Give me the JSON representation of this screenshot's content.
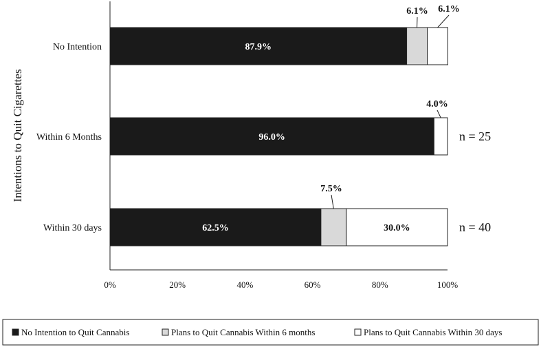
{
  "chart_data": {
    "type": "bar",
    "orientation": "horizontal",
    "stacked": true,
    "ylabel": "Intentions to Quit Cigarettes",
    "categories": [
      "No Intention",
      "Within 6 Months",
      "Within 30 days"
    ],
    "xlim": [
      0,
      100
    ],
    "x_ticks": [
      "0%",
      "20%",
      "40%",
      "60%",
      "80%",
      "100%"
    ],
    "series": [
      {
        "name": "No Intention to Quit Cannabis",
        "color": "#1a1a1a",
        "values": [
          87.9,
          96.0,
          62.5
        ],
        "labels": [
          "87.9%",
          "96.0%",
          "62.5%"
        ]
      },
      {
        "name": "Plans to Quit Cannabis Within 6 months",
        "color": "#d9d9d9",
        "values": [
          6.1,
          0,
          7.5
        ],
        "labels": [
          "6.1%",
          "",
          "7.5%"
        ]
      },
      {
        "name": "Plans to Quit Cannabis Within 30 days",
        "color": "#ffffff",
        "values": [
          6.1,
          4.0,
          30.0
        ],
        "labels": [
          "6.1%",
          "4.0%",
          "30.0%"
        ]
      }
    ],
    "sample_sizes": [
      "",
      "n = 25",
      "n = 40"
    ],
    "grid": false,
    "legend_position": "bottom"
  }
}
